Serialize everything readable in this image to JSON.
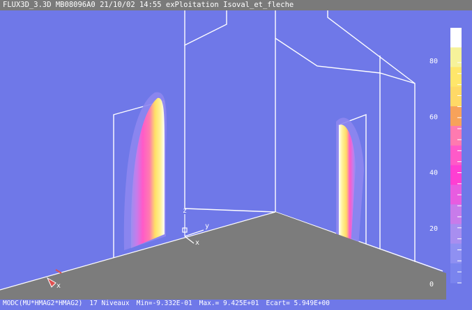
{
  "window": {
    "title": "FLUX3D_3.3D MB08096A0 21/10/02 14:55 exPloitation Isoval_et_fleche"
  },
  "axes_triad": {
    "z": "z",
    "y": "y",
    "x": "x",
    "x2": "x"
  },
  "colorbar": {
    "tick_labels": [
      "80",
      "60",
      "40",
      "20",
      "0"
    ],
    "colors": [
      "#ffffff",
      "#f6f29a",
      "#ffe66a",
      "#ffd966",
      "#f7a25a",
      "#ff7ab0",
      "#ff5ac8",
      "#ff3fd2",
      "#e85ce0",
      "#c87bea",
      "#a88ef0",
      "#8f90f2",
      "#7a84ee"
    ]
  },
  "status": {
    "quantity": "MODC(MU*HMAG2*HMAG2)",
    "levels": "17 Niveaux",
    "min": "Min=-9.332E-01",
    "max": "Max.= 9.425E+01",
    "ecart": "Ecart= 5.949E+00"
  }
}
